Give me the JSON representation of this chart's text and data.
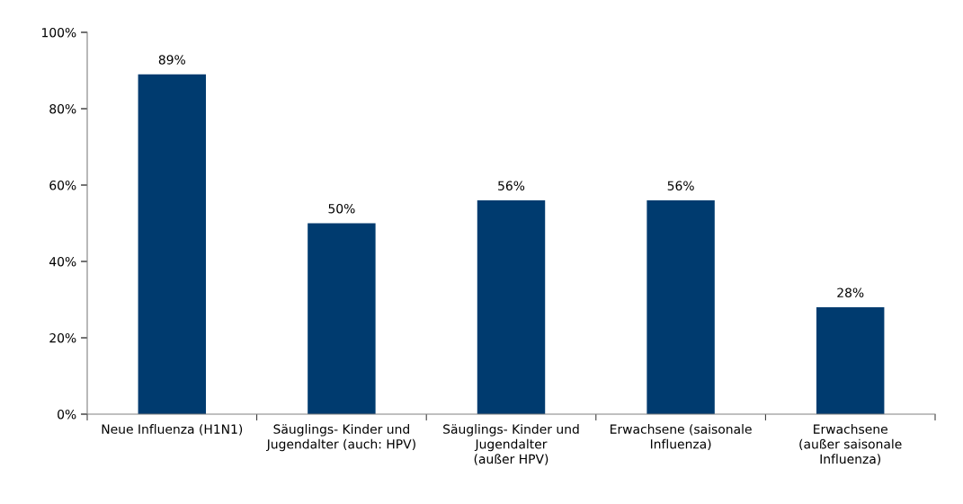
{
  "chart_data": {
    "type": "bar",
    "categories": [
      "Neue Influenza (H1N1)",
      "Säuglings- Kinder und\nJugendalter (auch: HPV)",
      "Säuglings- Kinder und\nJugendalter\n(außer HPV)",
      "Erwachsene (saisonale\nInfluenza)",
      "Erwachsene\n(außer saisonale\nInfluenza)"
    ],
    "values": [
      89,
      50,
      56,
      56,
      28
    ],
    "value_labels": [
      "89%",
      "50%",
      "56%",
      "56%",
      "28%"
    ],
    "color": "#003b6f",
    "ylim": [
      0,
      100
    ],
    "yticks": [
      {
        "value": 0,
        "label": "0%"
      },
      {
        "value": 20,
        "label": "20%"
      },
      {
        "value": 40,
        "label": "40%"
      },
      {
        "value": 60,
        "label": "60%"
      },
      {
        "value": 80,
        "label": "80%"
      },
      {
        "value": 100,
        "label": "100%"
      }
    ],
    "grid": false
  }
}
